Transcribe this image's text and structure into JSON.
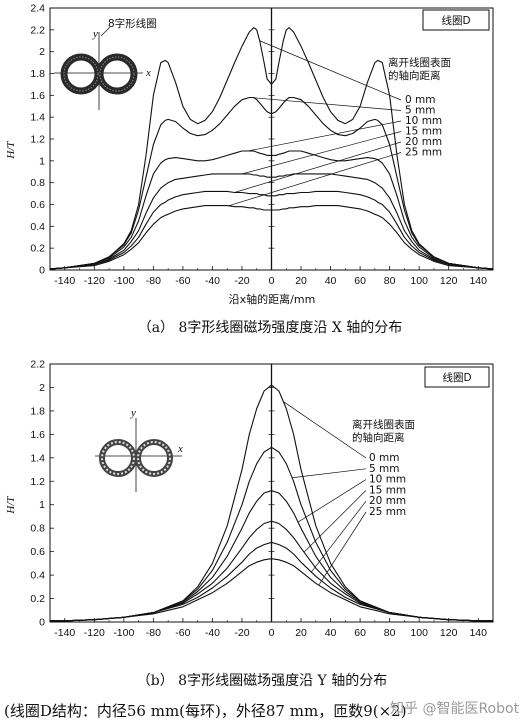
{
  "chart_data": [
    {
      "type": "line",
      "box_label": "线圈D",
      "ylabel": "H/T",
      "xlabel": "沿x轴的距离/mm",
      "xlim": [
        -150,
        150
      ],
      "ylim": [
        0,
        2.4
      ],
      "x_ticks": [
        -140,
        -120,
        -100,
        -80,
        -60,
        -40,
        -20,
        0,
        20,
        40,
        60,
        80,
        100,
        120,
        140
      ],
      "y_ticks": [
        "0",
        "0.2",
        "0.4",
        "0.6",
        "0.8",
        "1",
        "1.2",
        "1.4",
        "1.6",
        "1.8",
        "2",
        "2.2",
        "2.4"
      ],
      "legend_title": [
        "离开线圈表面",
        "的轴向距离"
      ],
      "inset": {
        "title": "8字形线圈",
        "x_label": "x",
        "y_label": "y"
      },
      "caption": "（a） 8字形线圈磁场强度度沿 X 轴的分布",
      "x": [
        -150,
        -140,
        -120,
        -110,
        -100,
        -95,
        -90,
        -85,
        -80,
        -75,
        -72,
        -70,
        -65,
        -60,
        -55,
        -50,
        -45,
        -40,
        -35,
        -30,
        -25,
        -20,
        -15,
        -12,
        -10,
        -8,
        -5,
        -3,
        0,
        3,
        5,
        8,
        10,
        12,
        15,
        20,
        25,
        30,
        35,
        40,
        45,
        50,
        55,
        60,
        65,
        70,
        72,
        75,
        80,
        85,
        90,
        95,
        100,
        110,
        120,
        140,
        150
      ],
      "series": [
        {
          "name": "0 mm",
          "values": [
            0.01,
            0.02,
            0.06,
            0.12,
            0.24,
            0.36,
            0.6,
            1.05,
            1.6,
            1.9,
            1.92,
            1.9,
            1.72,
            1.5,
            1.38,
            1.34,
            1.37,
            1.45,
            1.58,
            1.74,
            1.9,
            2.05,
            2.18,
            2.22,
            2.2,
            2.1,
            1.9,
            1.75,
            1.7,
            1.75,
            1.9,
            2.1,
            2.2,
            2.22,
            2.18,
            2.05,
            1.9,
            1.74,
            1.58,
            1.45,
            1.37,
            1.34,
            1.38,
            1.5,
            1.72,
            1.9,
            1.92,
            1.9,
            1.6,
            1.05,
            0.6,
            0.36,
            0.24,
            0.12,
            0.06,
            0.02,
            0.01
          ]
        },
        {
          "name": "5 mm",
          "values": [
            0.01,
            0.02,
            0.06,
            0.12,
            0.23,
            0.34,
            0.55,
            0.85,
            1.15,
            1.33,
            1.37,
            1.38,
            1.36,
            1.3,
            1.25,
            1.23,
            1.24,
            1.28,
            1.34,
            1.42,
            1.5,
            1.56,
            1.58,
            1.58,
            1.56,
            1.53,
            1.48,
            1.45,
            1.43,
            1.45,
            1.48,
            1.53,
            1.56,
            1.58,
            1.58,
            1.56,
            1.5,
            1.42,
            1.34,
            1.28,
            1.24,
            1.23,
            1.25,
            1.3,
            1.36,
            1.38,
            1.37,
            1.33,
            1.15,
            0.85,
            0.55,
            0.34,
            0.23,
            0.12,
            0.06,
            0.02,
            0.01
          ]
        },
        {
          "name": "10 mm",
          "values": [
            0.01,
            0.02,
            0.06,
            0.11,
            0.21,
            0.3,
            0.45,
            0.68,
            0.88,
            0.98,
            1.01,
            1.02,
            1.03,
            1.02,
            1.01,
            1.0,
            1.0,
            1.01,
            1.03,
            1.05,
            1.07,
            1.09,
            1.09,
            1.09,
            1.08,
            1.07,
            1.06,
            1.05,
            1.05,
            1.05,
            1.06,
            1.07,
            1.08,
            1.09,
            1.09,
            1.09,
            1.07,
            1.05,
            1.03,
            1.01,
            1.0,
            1.0,
            1.01,
            1.02,
            1.03,
            1.02,
            1.01,
            0.98,
            0.88,
            0.68,
            0.45,
            0.3,
            0.21,
            0.11,
            0.06,
            0.02,
            0.01
          ]
        },
        {
          "name": "15 mm",
          "values": [
            0.01,
            0.02,
            0.05,
            0.1,
            0.18,
            0.26,
            0.36,
            0.52,
            0.66,
            0.75,
            0.78,
            0.8,
            0.83,
            0.84,
            0.85,
            0.86,
            0.87,
            0.88,
            0.88,
            0.88,
            0.88,
            0.88,
            0.88,
            0.87,
            0.87,
            0.86,
            0.86,
            0.85,
            0.85,
            0.85,
            0.86,
            0.86,
            0.87,
            0.87,
            0.88,
            0.88,
            0.88,
            0.88,
            0.88,
            0.88,
            0.87,
            0.86,
            0.85,
            0.84,
            0.83,
            0.8,
            0.78,
            0.75,
            0.66,
            0.52,
            0.36,
            0.26,
            0.18,
            0.1,
            0.05,
            0.02,
            0.01
          ]
        },
        {
          "name": "20 mm",
          "values": [
            0.01,
            0.02,
            0.05,
            0.09,
            0.16,
            0.22,
            0.3,
            0.42,
            0.53,
            0.6,
            0.62,
            0.64,
            0.67,
            0.69,
            0.7,
            0.71,
            0.72,
            0.72,
            0.72,
            0.72,
            0.71,
            0.71,
            0.7,
            0.7,
            0.7,
            0.69,
            0.69,
            0.68,
            0.68,
            0.68,
            0.69,
            0.69,
            0.7,
            0.7,
            0.7,
            0.71,
            0.71,
            0.72,
            0.72,
            0.72,
            0.72,
            0.71,
            0.7,
            0.69,
            0.67,
            0.64,
            0.62,
            0.6,
            0.53,
            0.42,
            0.3,
            0.22,
            0.16,
            0.09,
            0.05,
            0.02,
            0.01
          ]
        },
        {
          "name": "25 mm",
          "values": [
            0.01,
            0.02,
            0.04,
            0.08,
            0.14,
            0.19,
            0.25,
            0.34,
            0.42,
            0.48,
            0.5,
            0.51,
            0.54,
            0.56,
            0.57,
            0.58,
            0.59,
            0.59,
            0.59,
            0.59,
            0.58,
            0.58,
            0.57,
            0.57,
            0.56,
            0.56,
            0.55,
            0.55,
            0.55,
            0.55,
            0.55,
            0.56,
            0.56,
            0.57,
            0.57,
            0.58,
            0.58,
            0.59,
            0.59,
            0.59,
            0.59,
            0.58,
            0.57,
            0.56,
            0.54,
            0.51,
            0.5,
            0.48,
            0.42,
            0.34,
            0.25,
            0.19,
            0.14,
            0.08,
            0.04,
            0.02,
            0.01
          ]
        }
      ]
    },
    {
      "type": "line",
      "box_label": "线圈D",
      "ylabel": "H/T",
      "xlabel": "",
      "xlim": [
        -150,
        150
      ],
      "ylim": [
        0,
        2.2
      ],
      "x_ticks": [
        -140,
        -120,
        -100,
        -80,
        -60,
        -40,
        -20,
        0,
        20,
        40,
        60,
        80,
        100,
        120,
        140
      ],
      "y_ticks": [
        "0",
        "0.2",
        "0.4",
        "0.6",
        "0.8",
        "1",
        "1.2",
        "1.4",
        "1.6",
        "1.8",
        "2",
        "2.2"
      ],
      "legend_title": [
        "离开线圈表面",
        "的轴向距离"
      ],
      "inset": {
        "x_label": "x",
        "y_label": "y"
      },
      "caption": "（b） 8字形线圈磁场强度沿 Y 轴的分布",
      "x": [
        -150,
        -140,
        -120,
        -100,
        -80,
        -60,
        -50,
        -40,
        -30,
        -20,
        -15,
        -10,
        -5,
        0,
        5,
        10,
        15,
        20,
        30,
        40,
        50,
        60,
        80,
        100,
        120,
        140,
        150
      ],
      "series": [
        {
          "name": "0 mm",
          "values": [
            0.01,
            0.01,
            0.02,
            0.04,
            0.08,
            0.18,
            0.3,
            0.5,
            0.82,
            1.3,
            1.6,
            1.82,
            1.97,
            2.02,
            1.97,
            1.82,
            1.6,
            1.3,
            0.82,
            0.5,
            0.3,
            0.18,
            0.08,
            0.04,
            0.02,
            0.01,
            0.01
          ]
        },
        {
          "name": "5 mm",
          "values": [
            0.01,
            0.01,
            0.02,
            0.04,
            0.08,
            0.18,
            0.28,
            0.44,
            0.68,
            1.0,
            1.2,
            1.35,
            1.45,
            1.49,
            1.45,
            1.35,
            1.2,
            1.0,
            0.68,
            0.44,
            0.28,
            0.18,
            0.08,
            0.04,
            0.02,
            0.01,
            0.01
          ]
        },
        {
          "name": "10 mm",
          "values": [
            0.01,
            0.01,
            0.02,
            0.04,
            0.08,
            0.17,
            0.26,
            0.38,
            0.56,
            0.8,
            0.93,
            1.03,
            1.1,
            1.12,
            1.1,
            1.03,
            0.93,
            0.8,
            0.56,
            0.38,
            0.26,
            0.17,
            0.08,
            0.04,
            0.02,
            0.01,
            0.01
          ]
        },
        {
          "name": "15 mm",
          "values": [
            0.01,
            0.01,
            0.02,
            0.04,
            0.08,
            0.16,
            0.24,
            0.33,
            0.46,
            0.63,
            0.72,
            0.79,
            0.84,
            0.86,
            0.84,
            0.79,
            0.72,
            0.63,
            0.46,
            0.33,
            0.24,
            0.16,
            0.08,
            0.04,
            0.02,
            0.01,
            0.01
          ]
        },
        {
          "name": "20 mm",
          "values": [
            0.01,
            0.01,
            0.02,
            0.04,
            0.08,
            0.15,
            0.21,
            0.29,
            0.39,
            0.51,
            0.58,
            0.63,
            0.66,
            0.68,
            0.66,
            0.63,
            0.58,
            0.51,
            0.39,
            0.29,
            0.21,
            0.15,
            0.08,
            0.04,
            0.02,
            0.01,
            0.01
          ]
        },
        {
          "name": "25 mm",
          "values": [
            0.01,
            0.01,
            0.02,
            0.04,
            0.07,
            0.13,
            0.19,
            0.25,
            0.33,
            0.43,
            0.48,
            0.51,
            0.53,
            0.54,
            0.53,
            0.51,
            0.48,
            0.43,
            0.33,
            0.25,
            0.19,
            0.13,
            0.07,
            0.04,
            0.02,
            0.01,
            0.01
          ]
        }
      ]
    }
  ],
  "footer": "(线圈D结构：内径56 mm(每环)，外径87 mm，匝数9(×2)",
  "watermark": "知乎 @智能医Robot"
}
